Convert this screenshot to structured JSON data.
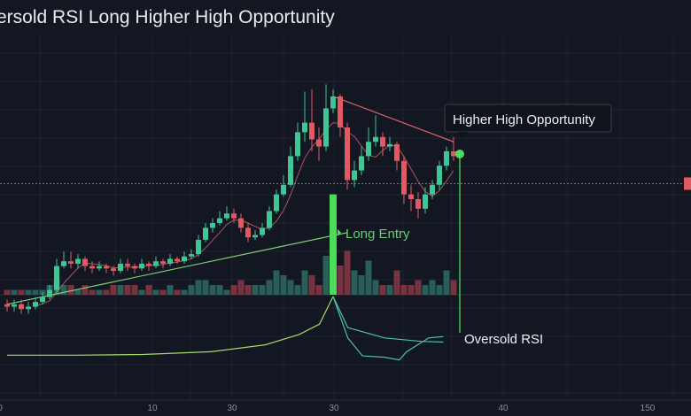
{
  "chart_data": {
    "type": "candlestick",
    "title": "ersold RSI Long Higher High Opportunity",
    "x_tick_labels": [
      "0",
      "10",
      "30",
      "30",
      "40",
      "150"
    ],
    "grid": true,
    "colors": {
      "up": "#3fc596",
      "down": "#e05a63",
      "entry": "#4ddb5c",
      "trend_green": "#7ed07a",
      "trend_red": "#d8616a",
      "rsi_green": "#a8d86a",
      "rsi_cyan": "#4cc0b0",
      "level": "#c0515a"
    },
    "candles_ohlc": [
      [
        6,
        8,
        3,
        5
      ],
      [
        5,
        8,
        3,
        6
      ],
      [
        6,
        8,
        2,
        4
      ],
      [
        4,
        7,
        2,
        5
      ],
      [
        5,
        9,
        4,
        7
      ],
      [
        7,
        11,
        6,
        9
      ],
      [
        9,
        14,
        8,
        12
      ],
      [
        12,
        25,
        11,
        22
      ],
      [
        22,
        28,
        21,
        24
      ],
      [
        24,
        28,
        21,
        23
      ],
      [
        23,
        27,
        21,
        25
      ],
      [
        25,
        26,
        20,
        22
      ],
      [
        22,
        24,
        19,
        21
      ],
      [
        21,
        24,
        20,
        22
      ],
      [
        22,
        23,
        19,
        21
      ],
      [
        21,
        22,
        18,
        20
      ],
      [
        20,
        25,
        19,
        23
      ],
      [
        23,
        25,
        20,
        22
      ],
      [
        22,
        23,
        19,
        21
      ],
      [
        21,
        25,
        20,
        23
      ],
      [
        23,
        24,
        20,
        22
      ],
      [
        22,
        26,
        21,
        24
      ],
      [
        24,
        25,
        21,
        23
      ],
      [
        23,
        27,
        22,
        25
      ],
      [
        25,
        26,
        23,
        24
      ],
      [
        24,
        28,
        23,
        26
      ],
      [
        26,
        29,
        25,
        27
      ],
      [
        27,
        35,
        26,
        33
      ],
      [
        33,
        40,
        32,
        38
      ],
      [
        38,
        42,
        36,
        40
      ],
      [
        40,
        45,
        39,
        42
      ],
      [
        42,
        47,
        41,
        44
      ],
      [
        44,
        46,
        40,
        42
      ],
      [
        42,
        44,
        36,
        38
      ],
      [
        38,
        40,
        32,
        34
      ],
      [
        34,
        37,
        33,
        35
      ],
      [
        35,
        40,
        34,
        38
      ],
      [
        38,
        47,
        37,
        45
      ],
      [
        45,
        54,
        44,
        52
      ],
      [
        52,
        60,
        51,
        56
      ],
      [
        56,
        72,
        55,
        68
      ],
      [
        68,
        82,
        66,
        78
      ],
      [
        78,
        95,
        74,
        82
      ],
      [
        82,
        96,
        70,
        75
      ],
      [
        75,
        80,
        66,
        72
      ],
      [
        72,
        98,
        70,
        88
      ],
      [
        88,
        96,
        86,
        93
      ],
      [
        93,
        94,
        76,
        80
      ],
      [
        80,
        82,
        54,
        58
      ],
      [
        58,
        66,
        55,
        62
      ],
      [
        62,
        72,
        60,
        68
      ],
      [
        68,
        80,
        66,
        74
      ],
      [
        74,
        85,
        72,
        76
      ],
      [
        76,
        78,
        68,
        72
      ],
      [
        72,
        76,
        70,
        73
      ],
      [
        73,
        74,
        62,
        66
      ],
      [
        66,
        68,
        48,
        52
      ],
      [
        52,
        56,
        45,
        50
      ],
      [
        50,
        53,
        42,
        46
      ],
      [
        46,
        55,
        44,
        52
      ],
      [
        52,
        58,
        50,
        56
      ],
      [
        56,
        66,
        54,
        64
      ],
      [
        64,
        72,
        62,
        70
      ],
      [
        70,
        76,
        66,
        68
      ]
    ],
    "volume": [
      1,
      1,
      1,
      1,
      1,
      1,
      2,
      3,
      2,
      2,
      1,
      2,
      1,
      1,
      1,
      2,
      2,
      2,
      2,
      1,
      2,
      1,
      1,
      2,
      1,
      1,
      2,
      3,
      3,
      2,
      2,
      1,
      2,
      3,
      2,
      2,
      2,
      3,
      5,
      4,
      3,
      2,
      5,
      4,
      2,
      8,
      8,
      6,
      9,
      5,
      4,
      7,
      3,
      2,
      2,
      5,
      2,
      2,
      3,
      2,
      3,
      2,
      5,
      3
    ],
    "horizontal_level": 56.5,
    "ylim": [
      0,
      100
    ],
    "trendlines": [
      {
        "color": "trend_green",
        "from": [
          0,
          6
        ],
        "to": [
          48,
          36
        ]
      },
      {
        "color": "trend_red",
        "from": [
          46,
          93
        ],
        "to": [
          63,
          74
        ]
      }
    ],
    "rsi": {
      "ylim": [
        0,
        100
      ],
      "green": [
        [
          0,
          15
        ],
        [
          10,
          15
        ],
        [
          20,
          16
        ],
        [
          30,
          20
        ],
        [
          38,
          30
        ],
        [
          43,
          45
        ],
        [
          46,
          60
        ],
        [
          48,
          100
        ]
      ],
      "cyan_a": [
        [
          48,
          100
        ],
        [
          50,
          55
        ],
        [
          55,
          40
        ],
        [
          60,
          35
        ],
        [
          63,
          34
        ]
      ],
      "cyan_b": [
        [
          48,
          100
        ],
        [
          50,
          40
        ],
        [
          52,
          14
        ],
        [
          55,
          12
        ],
        [
          57,
          8
        ],
        [
          58,
          20
        ],
        [
          61,
          40
        ],
        [
          63,
          42
        ]
      ]
    },
    "entry_index": 48,
    "signal_index": 64,
    "signal_price": 70,
    "annotations": {
      "long_entry": "Long Entry",
      "higher_high": "Higher High Opportunity",
      "oversold": "Oversold RSI"
    }
  }
}
